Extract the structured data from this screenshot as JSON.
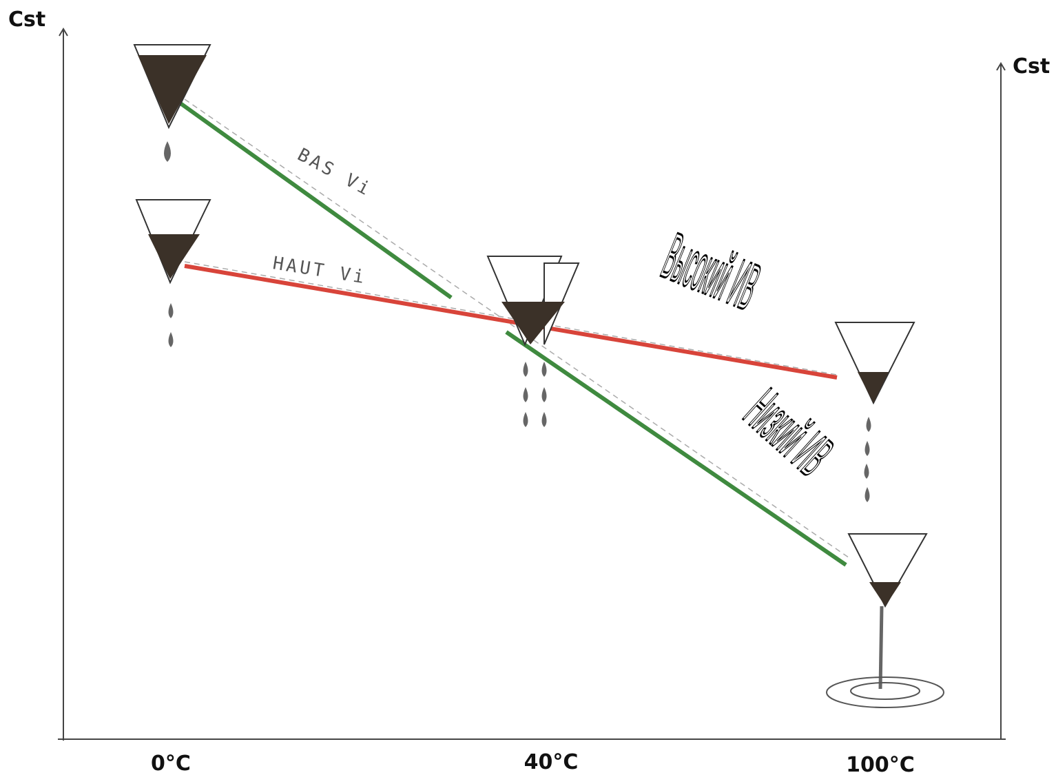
{
  "axes": {
    "left_label": "Cst",
    "right_label": "Cst"
  },
  "x_labels": [
    "0°C",
    "40°C",
    "100°C"
  ],
  "lines": [
    {
      "label": "BAS Vi"
    },
    {
      "label": "HAUT Vi"
    }
  ],
  "annotations": [
    "Высокий ИВ",
    "Низкий ИВ"
  ]
}
